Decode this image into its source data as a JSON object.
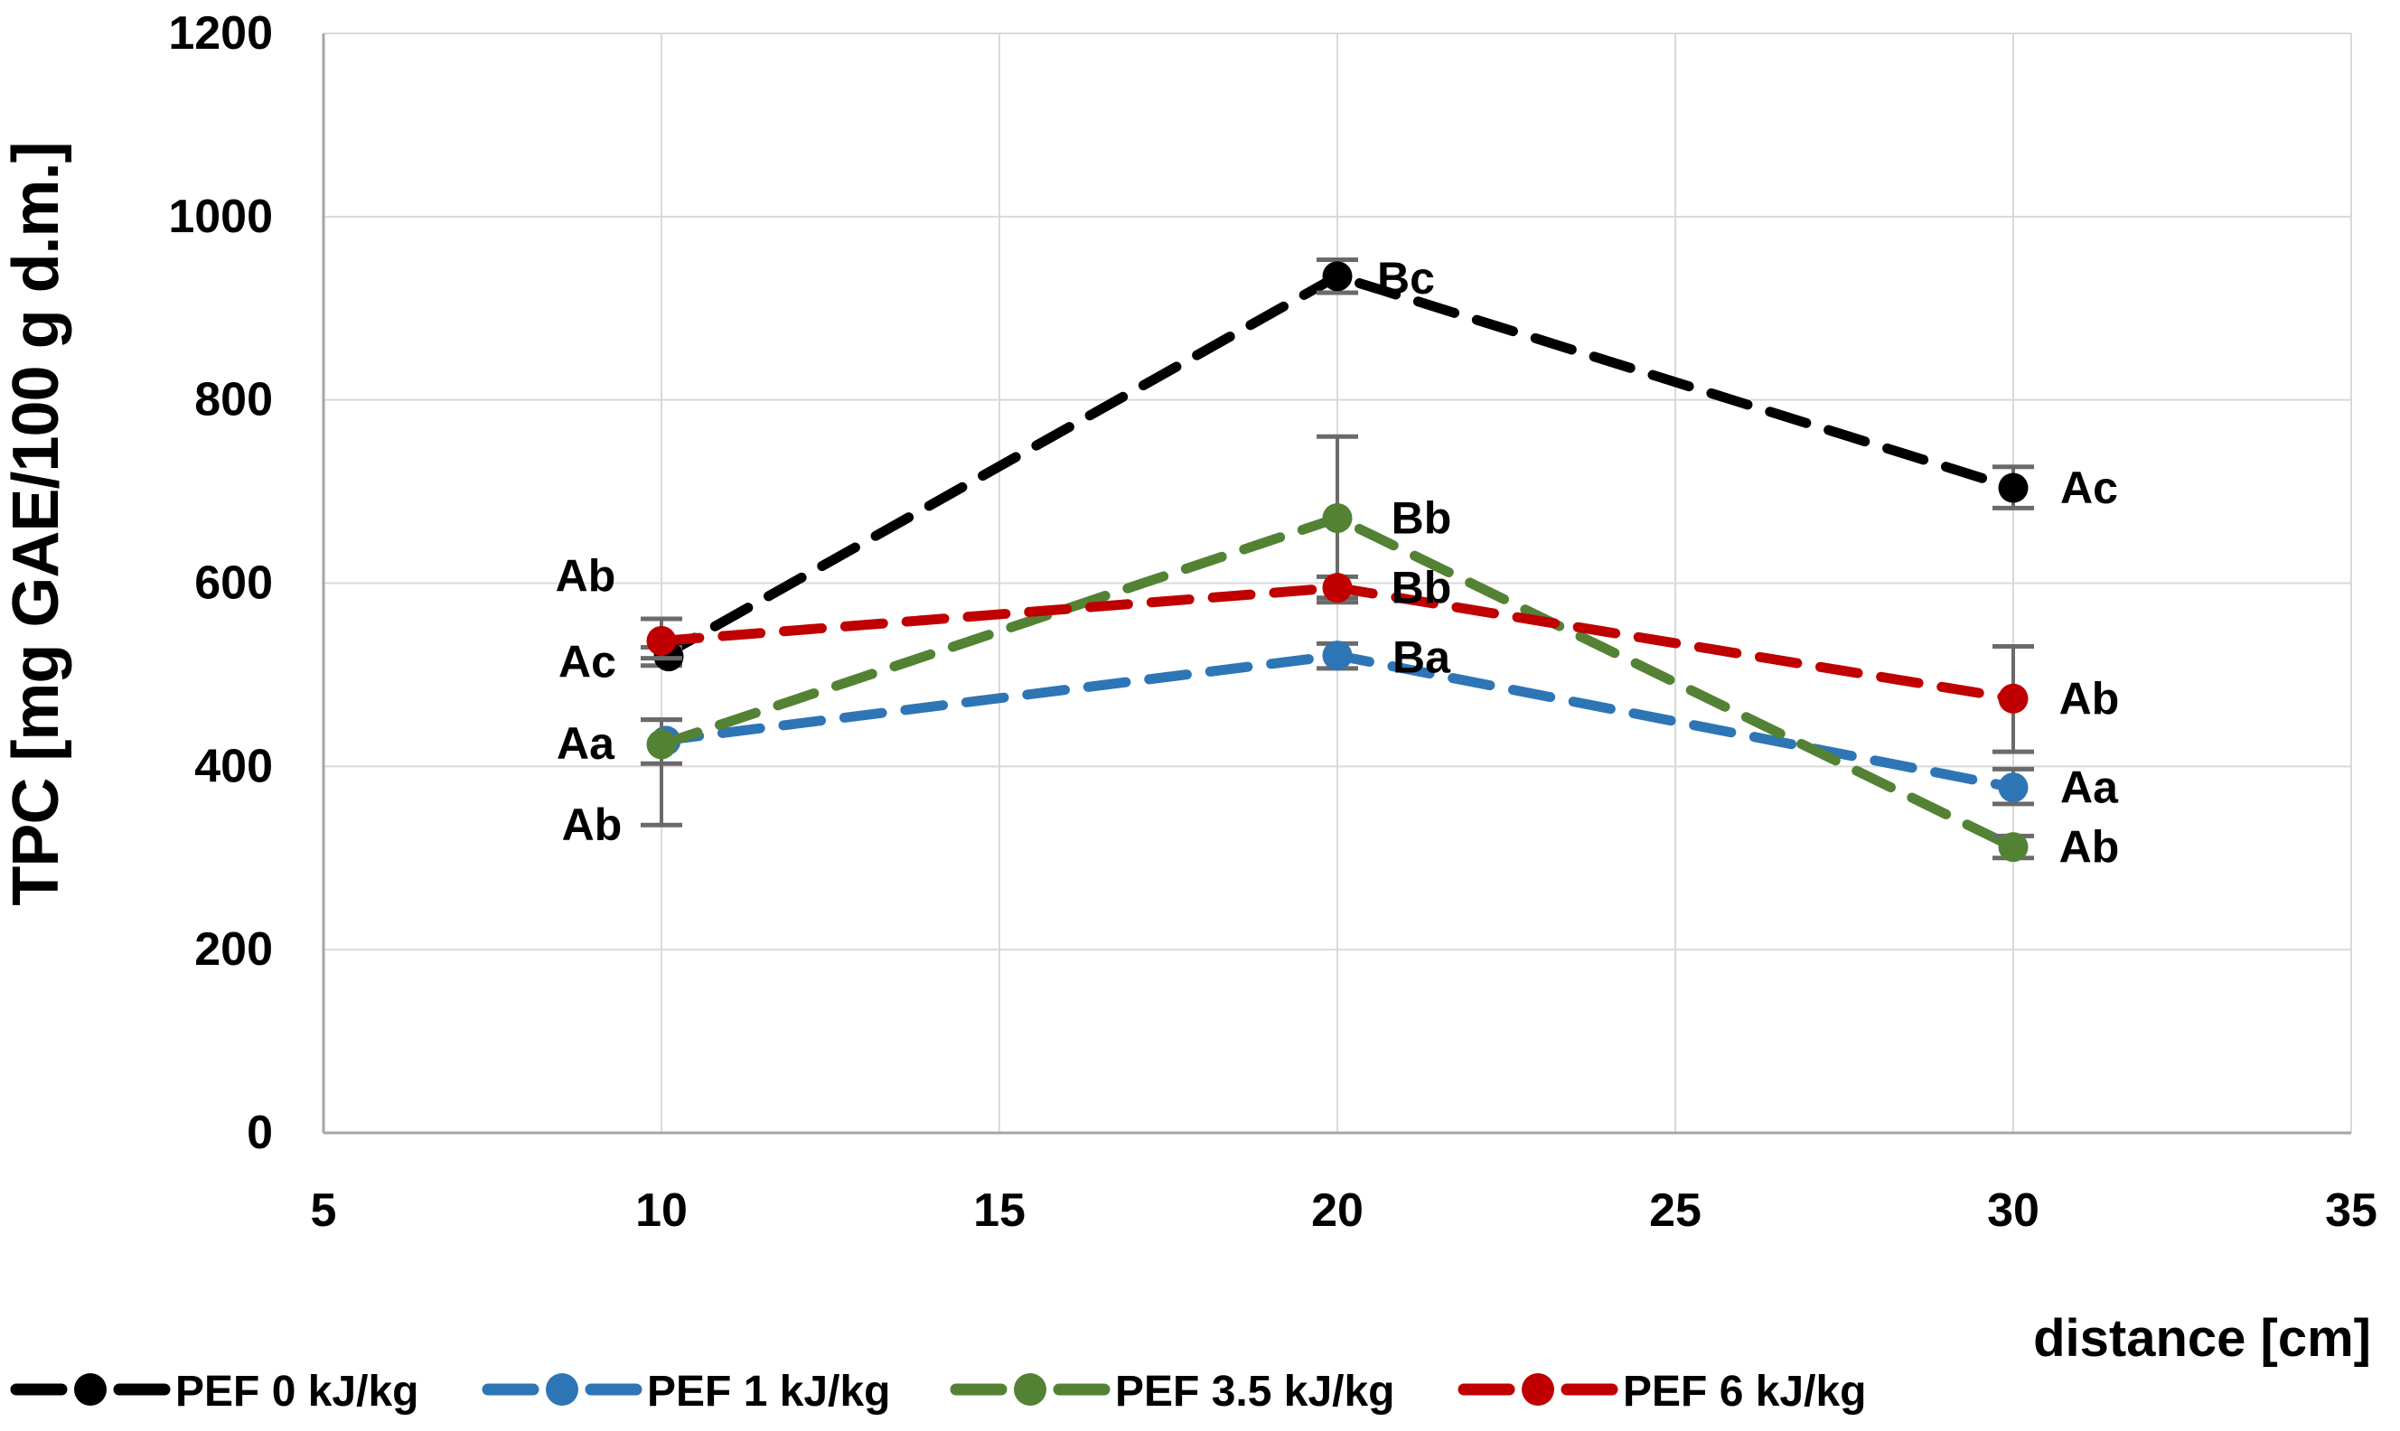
{
  "chart_data": {
    "type": "line",
    "title": "",
    "xlabel": "distance [cm]",
    "ylabel": "TPC [mg GAE/100 g d.m.]",
    "x": [
      10,
      20,
      30
    ],
    "x_ticks": [
      5,
      10,
      15,
      20,
      25,
      30,
      35
    ],
    "y_ticks": [
      0,
      200,
      400,
      600,
      800,
      1000,
      1200
    ],
    "xlim": [
      5,
      35
    ],
    "ylim": [
      0,
      1200
    ],
    "grid": true,
    "line_style": "dashed",
    "marker": "circle",
    "legend_position": "bottom",
    "grid_color": "#D9D9D9",
    "axis_line_color": "#A6A6A6",
    "error_bar_color": "#6A6A6A",
    "series": [
      {
        "name": "PEF 0 kJ/kg",
        "color": "#000000",
        "values": [
          520,
          935,
          704
        ],
        "error_plus": [
          10,
          18,
          23
        ],
        "error_minus": [
          10,
          18,
          22
        ],
        "point_labels": [
          "Ac",
          "Bc",
          "Ac"
        ],
        "label_offsets": [
          [
            -82,
            6
          ],
          [
            76,
            2
          ],
          [
            84,
            0
          ]
        ],
        "marker_dx": [
          8,
          0,
          0
        ]
      },
      {
        "name": "PEF 1 kJ/kg",
        "color": "#2E75B6",
        "values": [
          428,
          521,
          377
        ],
        "error_plus": [
          23,
          13,
          20
        ],
        "error_minus": [
          92,
          14,
          18
        ],
        "point_labels": [
          "Aa",
          "Ba",
          "Aa"
        ],
        "label_offsets": [
          [
            -84,
            3
          ],
          [
            93,
            2
          ],
          [
            84,
            0
          ]
        ],
        "marker_dx": [
          5,
          0,
          0
        ]
      },
      {
        "name": "PEF 3.5 kJ/kg",
        "color": "#548235",
        "values": [
          424,
          671,
          312
        ],
        "error_plus": [
          27,
          89,
          12
        ],
        "error_minus": [
          21,
          92,
          12
        ],
        "point_labels": [
          "Ab",
          "Bb",
          "Ab"
        ],
        "label_offsets": [
          [
            -77,
            89
          ],
          [
            93,
            0
          ],
          [
            84,
            0
          ]
        ],
        "marker_dx": [
          0,
          0,
          0
        ]
      },
      {
        "name": "PEF 6 kJ/kg",
        "color": "#C00000",
        "values": [
          537,
          595,
          474
        ],
        "error_plus": [
          24,
          12,
          57
        ],
        "error_minus": [
          19,
          11,
          58
        ],
        "point_labels": [
          "Ab",
          "Bb",
          "Ab"
        ],
        "label_offsets": [
          [
            -84,
            -72
          ],
          [
            93,
            0
          ],
          [
            84,
            0
          ]
        ],
        "marker_dx": [
          0,
          0,
          0
        ]
      }
    ]
  }
}
